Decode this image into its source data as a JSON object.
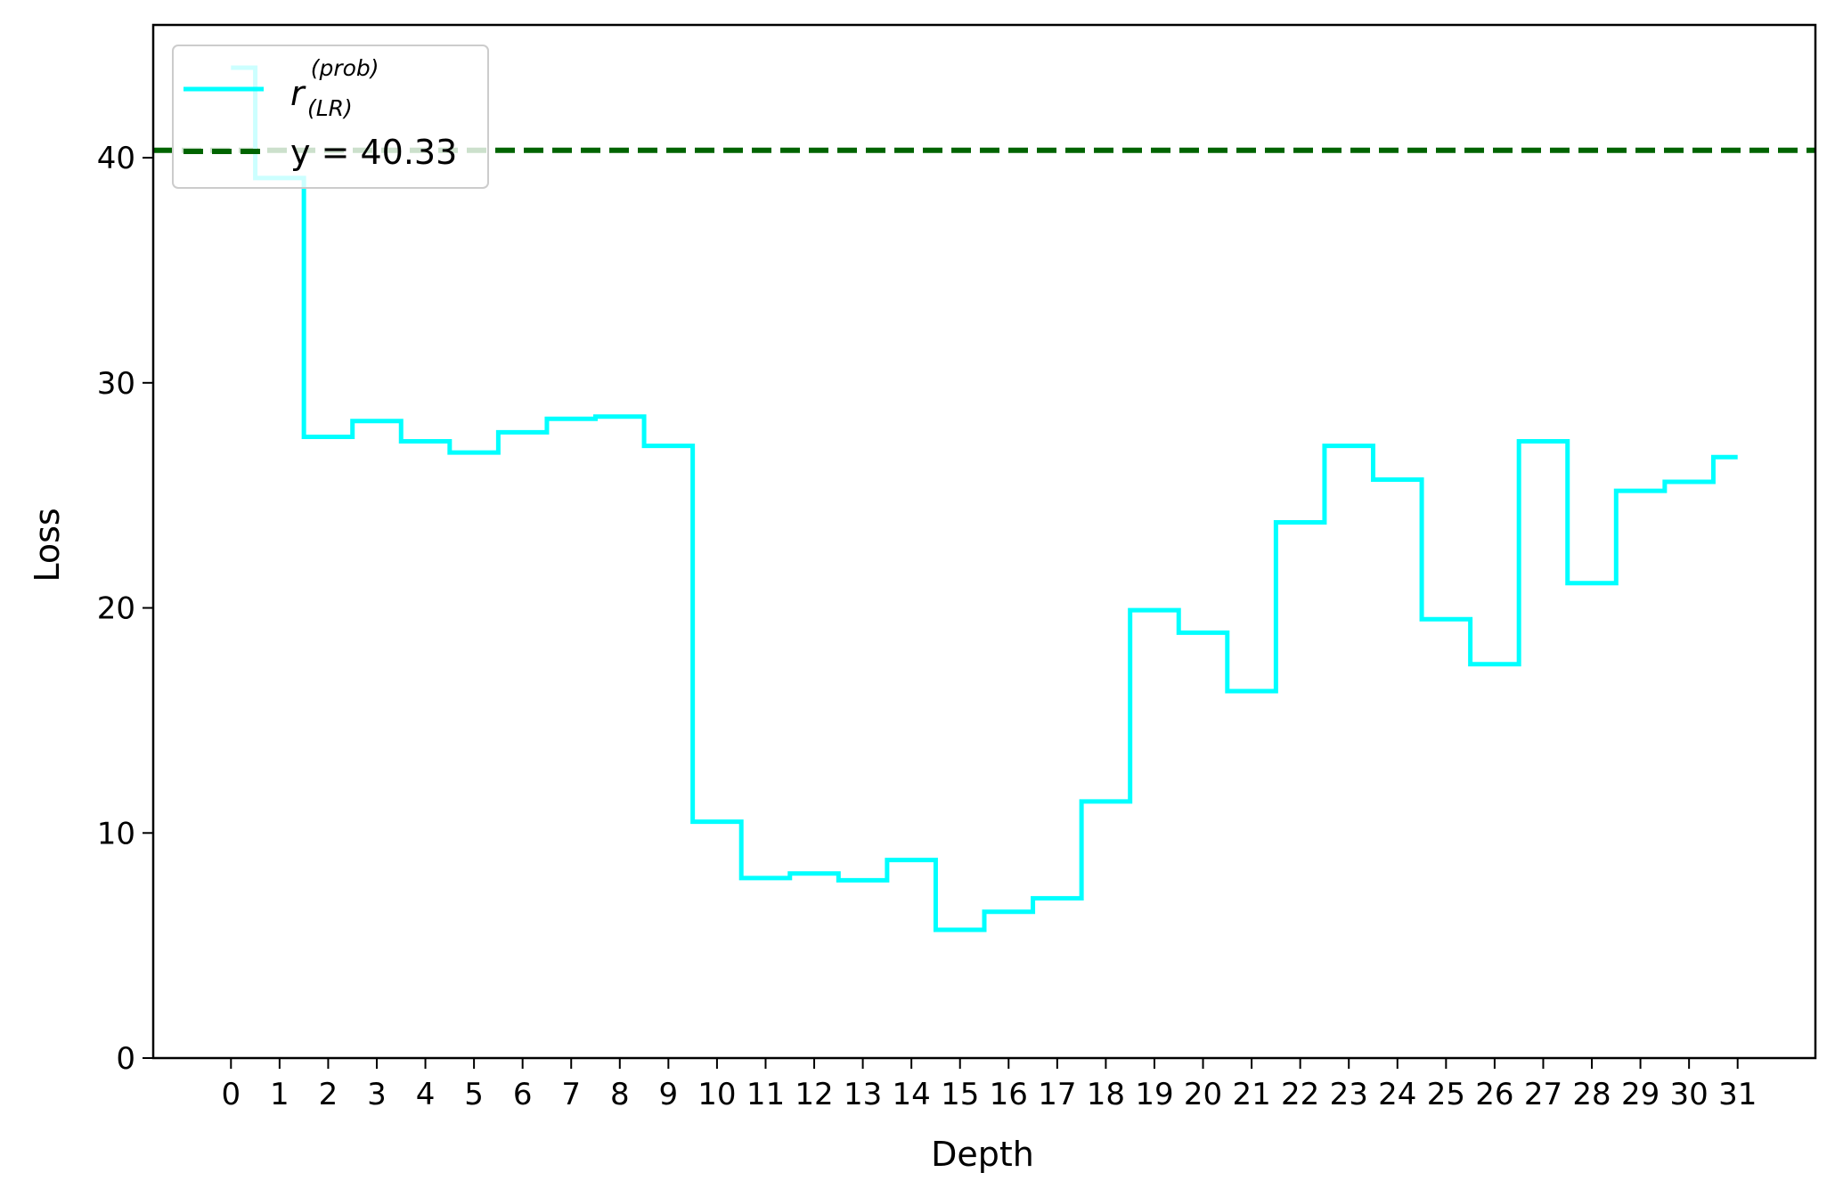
{
  "chart_data": {
    "type": "line",
    "drawstyle": "steps-mid",
    "xlabel": "Depth",
    "ylabel": "Loss",
    "x": [
      0,
      1,
      2,
      3,
      4,
      5,
      6,
      7,
      8,
      9,
      10,
      11,
      12,
      13,
      14,
      15,
      16,
      17,
      18,
      19,
      20,
      21,
      22,
      23,
      24,
      25,
      26,
      27,
      28,
      29,
      30,
      31
    ],
    "xlim": [
      -1.6,
      32.6
    ],
    "ylim": [
      0,
      45.9
    ],
    "yticks": [
      0,
      10,
      20,
      30,
      40
    ],
    "grid": false,
    "legend_position": "upper-left",
    "series": [
      {
        "name": "r_(LR)^(prob)",
        "label_base": "r",
        "label_superscript": "(prob)",
        "label_subscript": "(LR)",
        "color": "#00ffff",
        "values": [
          44.0,
          39.1,
          27.6,
          28.3,
          27.4,
          26.9,
          27.8,
          28.4,
          28.5,
          27.2,
          10.5,
          8.0,
          8.2,
          7.9,
          8.8,
          5.7,
          6.5,
          7.1,
          11.4,
          19.9,
          18.9,
          16.3,
          23.8,
          27.2,
          25.7,
          19.5,
          17.5,
          27.4,
          21.1,
          25.2,
          25.6,
          26.7
        ]
      }
    ],
    "reference_line": {
      "label": "y = 40.33",
      "y": 40.33,
      "color": "#006400",
      "style": "dashed"
    }
  }
}
